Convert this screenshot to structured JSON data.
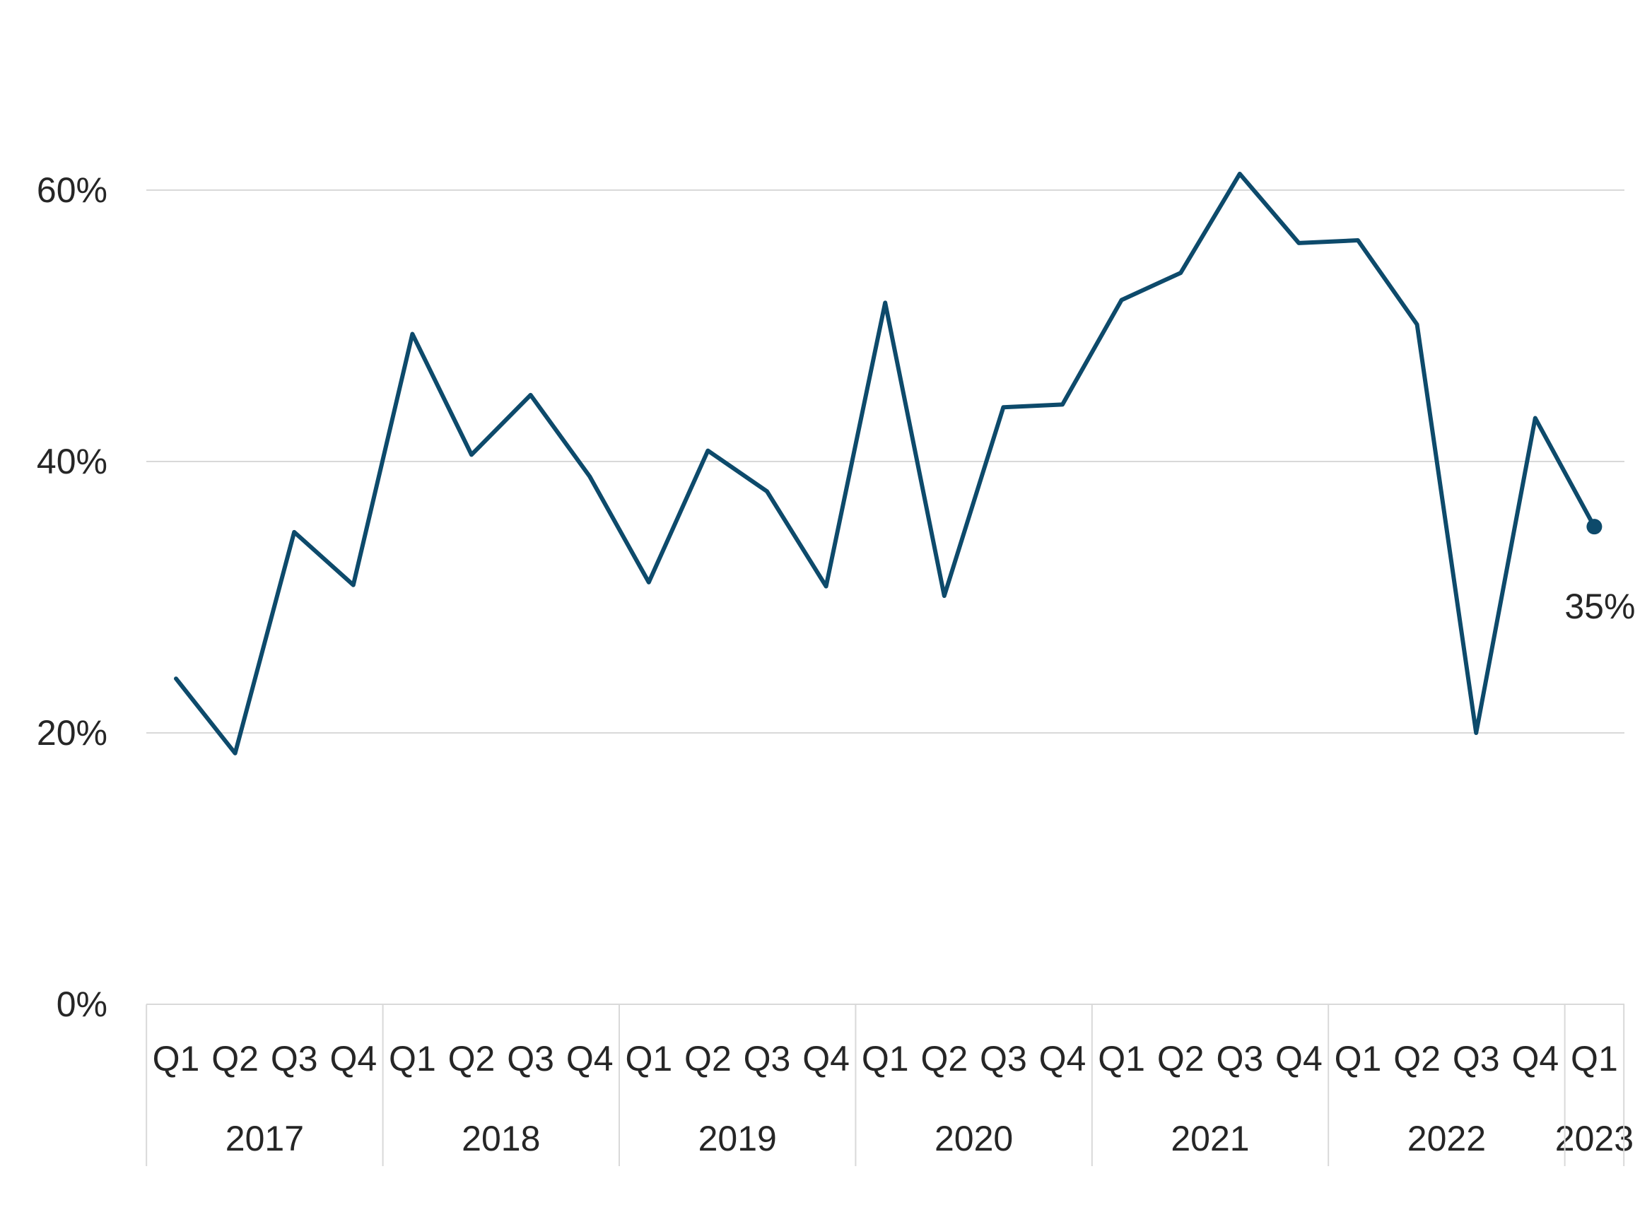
{
  "chart_data": {
    "type": "line",
    "title": "",
    "xlabel": "",
    "ylabel": "",
    "ylim": [
      0,
      0.6
    ],
    "y_ticks": [
      "0%",
      "20%",
      "40%",
      "60%"
    ],
    "y_tick_values": [
      0,
      0.2,
      0.4,
      0.6
    ],
    "grid": true,
    "categories": [
      "Q1",
      "Q2",
      "Q3",
      "Q4",
      "Q1",
      "Q2",
      "Q3",
      "Q4",
      "Q1",
      "Q2",
      "Q3",
      "Q4",
      "Q1",
      "Q2",
      "Q3",
      "Q4",
      "Q1",
      "Q2",
      "Q3",
      "Q4",
      "Q1",
      "Q2",
      "Q3",
      "Q4",
      "Q1"
    ],
    "years": [
      {
        "label": "2017",
        "quarters": 4
      },
      {
        "label": "2018",
        "quarters": 4
      },
      {
        "label": "2019",
        "quarters": 4
      },
      {
        "label": "2020",
        "quarters": 4
      },
      {
        "label": "2021",
        "quarters": 4
      },
      {
        "label": "2022",
        "quarters": 4
      },
      {
        "label": "2023",
        "quarters": 1
      }
    ],
    "series": [
      {
        "color": "#0d4a6b",
        "values": [
          0.24,
          0.185,
          0.348,
          0.309,
          0.494,
          0.405,
          0.449,
          0.389,
          0.311,
          0.408,
          0.378,
          0.308,
          0.517,
          0.301,
          0.44,
          0.442,
          0.519,
          0.539,
          0.612,
          0.561,
          0.563,
          0.501,
          0.2,
          0.432,
          0.352
        ]
      }
    ],
    "end_label": "35%"
  },
  "colors": {
    "line": "#0d4a6b",
    "grid": "#d9d9d9",
    "axis": "#d9d9d9",
    "text": "#262626"
  }
}
